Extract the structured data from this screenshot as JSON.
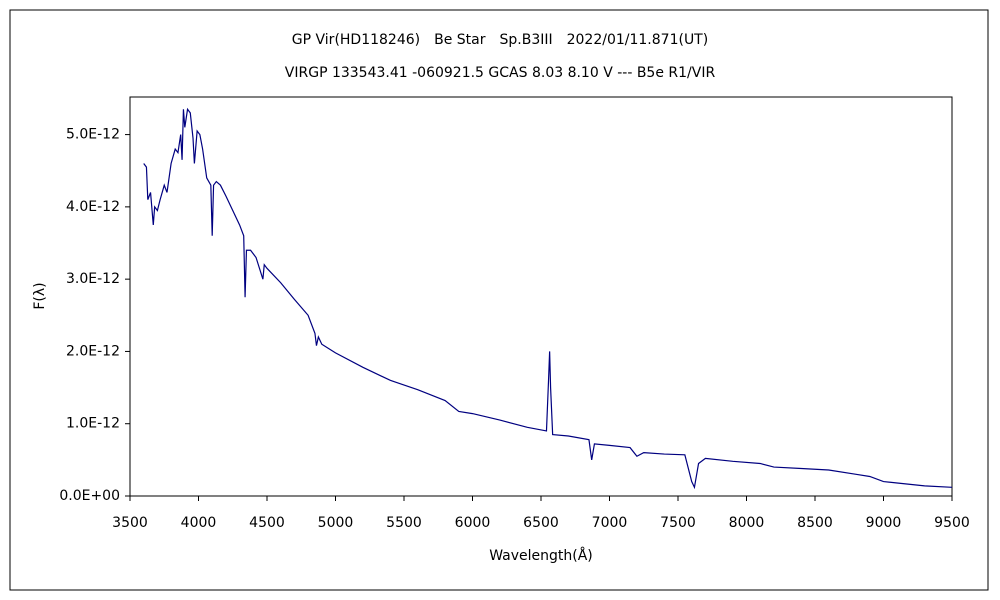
{
  "chart_data": {
    "type": "line",
    "title": "GP Vir(HD118246)　Be Star　Sp.B3III　2022/01/11.871(UT)",
    "subtitle": "VIRGP 133543.41 -060921.5 GCAS 8.03 8.10 V --- B5e R1/VIR",
    "x_label": "Wavelength(Å)",
    "y_label": "F(λ)",
    "xlim": [
      3500,
      9500
    ],
    "xticks": [
      3500,
      4000,
      4500,
      5000,
      5500,
      6000,
      6500,
      7000,
      7500,
      8000,
      8500,
      9000,
      9500
    ],
    "ylim": [
      0,
      5.52e-12
    ],
    "yticks": [
      {
        "value": 0,
        "label": "0.0E+00"
      },
      {
        "value": 1e-12,
        "label": "1.0E-12"
      },
      {
        "value": 2e-12,
        "label": "2.0E-12"
      },
      {
        "value": 3e-12,
        "label": "3.0E-12"
      },
      {
        "value": 4e-12,
        "label": "4.0E-12"
      },
      {
        "value": 5e-12,
        "label": "5.0E-12"
      }
    ],
    "x": [
      3600,
      3620,
      3630,
      3650,
      3670,
      3680,
      3700,
      3720,
      3750,
      3770,
      3800,
      3830,
      3850,
      3870,
      3880,
      3890,
      3900,
      3920,
      3940,
      3960,
      3970,
      3990,
      4010,
      4030,
      4060,
      4090,
      4100,
      4110,
      4130,
      4160,
      4200,
      4250,
      4300,
      4330,
      4340,
      4350,
      4380,
      4420,
      4470,
      4480,
      4500,
      4600,
      4700,
      4800,
      4850,
      4861,
      4875,
      4900,
      5000,
      5200,
      5400,
      5600,
      5800,
      5900,
      6000,
      6200,
      6400,
      6540,
      6555,
      6563,
      6570,
      6585,
      6700,
      6850,
      6870,
      6890,
      7000,
      7150,
      7200,
      7250,
      7400,
      7550,
      7600,
      7620,
      7650,
      7700,
      7900,
      8100,
      8200,
      8400,
      8600,
      8800,
      8900,
      9000,
      9100,
      9300,
      9500
    ],
    "series": [
      {
        "name": "F(λ)",
        "color": "#000080",
        "values": [
          4.6e-12,
          4.55e-12,
          4.1e-12,
          4.2e-12,
          3.75e-12,
          4e-12,
          3.95e-12,
          4.1e-12,
          4.3e-12,
          4.2e-12,
          4.6e-12,
          4.8e-12,
          4.75e-12,
          5e-12,
          4.65e-12,
          5.35e-12,
          5.1e-12,
          5.35e-12,
          5.3e-12,
          4.95e-12,
          4.6e-12,
          5.05e-12,
          5e-12,
          4.8e-12,
          4.4e-12,
          4.3e-12,
          3.6e-12,
          4.3e-12,
          4.35e-12,
          4.3e-12,
          4.15e-12,
          3.95e-12,
          3.75e-12,
          3.6e-12,
          2.75e-12,
          3.4e-12,
          3.4e-12,
          3.3e-12,
          3e-12,
          3.2e-12,
          3.15e-12,
          2.95e-12,
          2.72e-12,
          2.5e-12,
          2.25e-12,
          2.08e-12,
          2.2e-12,
          2.1e-12,
          1.98e-12,
          1.78e-12,
          1.6e-12,
          1.47e-12,
          1.32e-12,
          1.17e-12,
          1.14e-12,
          1.05e-12,
          9.5e-13,
          9e-13,
          1.6e-12,
          2e-12,
          1.5e-12,
          8.5e-13,
          8.3e-13,
          7.8e-13,
          5e-13,
          7.2e-13,
          7e-13,
          6.7e-13,
          5.5e-13,
          6e-13,
          5.8e-13,
          5.7e-13,
          2e-13,
          1.2e-13,
          4.5e-13,
          5.2e-13,
          4.8e-13,
          4.5e-13,
          4e-13,
          3.8e-13,
          3.6e-13,
          3e-13,
          2.7e-13,
          2e-13,
          1.8e-13,
          1.4e-13,
          1.2e-13
        ]
      }
    ]
  }
}
